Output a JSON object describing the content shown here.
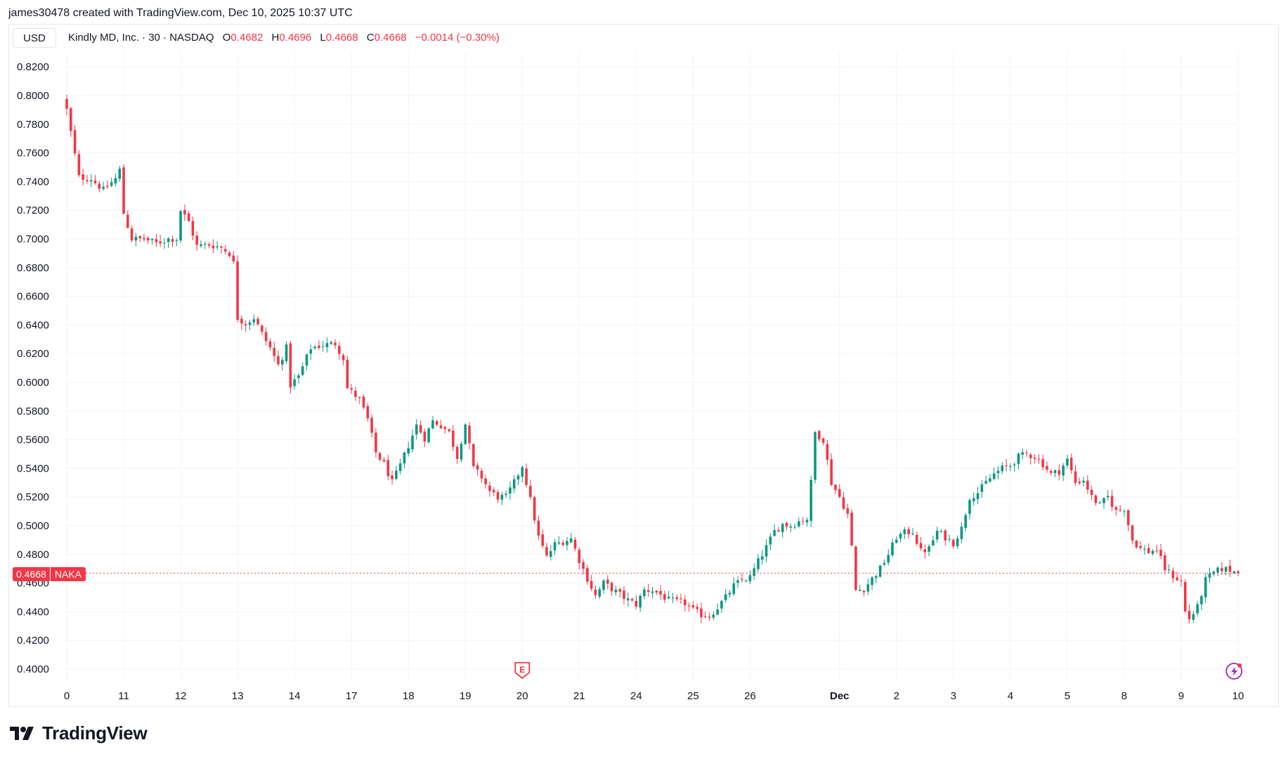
{
  "header": {
    "caption": "james30478 created with TradingView.com, Dec 10, 2025 10:37 UTC"
  },
  "toolbar": {
    "currency": "USD"
  },
  "legend": {
    "symbol": "Kindly MD, Inc. · 30 · NASDAQ",
    "open_label": "O",
    "open": "0.4682",
    "high_label": "H",
    "high": "0.4696",
    "low_label": "L",
    "low": "0.4668",
    "close_label": "C",
    "close": "0.4668",
    "change": "−0.0014 (−0.30%)"
  },
  "price_tag": {
    "price": "0.4668",
    "ticker": "NAKA"
  },
  "brand": {
    "name": "TradingView"
  },
  "colors": {
    "up": "#089981",
    "down": "#f23645",
    "grid": "#f0f3fa",
    "text": "#131722",
    "current_line": "#f23645"
  },
  "icons": {
    "earnings_marker": "earnings-icon",
    "event_marker": "lightning-icon"
  },
  "chart_data": {
    "type": "candlestick",
    "title": "Kindly MD, Inc. · 30 · NASDAQ",
    "ylim": [
      0.39,
      0.825
    ],
    "yticks": [
      "0.4000",
      "0.4200",
      "0.4400",
      "0.4600",
      "0.4800",
      "0.5000",
      "0.5200",
      "0.5400",
      "0.5600",
      "0.5800",
      "0.6000",
      "0.6200",
      "0.6400",
      "0.6600",
      "0.6800",
      "0.7000",
      "0.7200",
      "0.7400",
      "0.7600",
      "0.7800",
      "0.8000",
      "0.8200"
    ],
    "xticks": [
      {
        "label": "0",
        "i": 0
      },
      {
        "label": "11",
        "i": 14
      },
      {
        "label": "12",
        "i": 28
      },
      {
        "label": "13",
        "i": 42
      },
      {
        "label": "14",
        "i": 56
      },
      {
        "label": "17",
        "i": 70
      },
      {
        "label": "18",
        "i": 84
      },
      {
        "label": "19",
        "i": 98
      },
      {
        "label": "20",
        "i": 112
      },
      {
        "label": "21",
        "i": 126
      },
      {
        "label": "24",
        "i": 140
      },
      {
        "label": "25",
        "i": 154
      },
      {
        "label": "26",
        "i": 168
      },
      {
        "label": "Dec",
        "i": 190,
        "bold": true
      },
      {
        "label": "2",
        "i": 204
      },
      {
        "label": "3",
        "i": 218
      },
      {
        "label": "4",
        "i": 232
      },
      {
        "label": "5",
        "i": 246
      },
      {
        "label": "8",
        "i": 260
      },
      {
        "label": "9",
        "i": 274
      },
      {
        "label": "10",
        "i": 288
      }
    ],
    "current_price": 0.4668,
    "earnings_marker_index": 112,
    "event_marker_index": 287,
    "anchors": [
      [
        0,
        0.79
      ],
      [
        3,
        0.743
      ],
      [
        6,
        0.742
      ],
      [
        9,
        0.734
      ],
      [
        12,
        0.742
      ],
      [
        13,
        0.748
      ],
      [
        14,
        0.718
      ],
      [
        16,
        0.7
      ],
      [
        19,
        0.7
      ],
      [
        22,
        0.697
      ],
      [
        25,
        0.7
      ],
      [
        27,
        0.7
      ],
      [
        28,
        0.72
      ],
      [
        30,
        0.712
      ],
      [
        32,
        0.695
      ],
      [
        35,
        0.696
      ],
      [
        38,
        0.694
      ],
      [
        40,
        0.69
      ],
      [
        41,
        0.683
      ],
      [
        42,
        0.645
      ],
      [
        44,
        0.641
      ],
      [
        46,
        0.645
      ],
      [
        48,
        0.634
      ],
      [
        50,
        0.624
      ],
      [
        52,
        0.612
      ],
      [
        54,
        0.624
      ],
      [
        55,
        0.598
      ],
      [
        57,
        0.604
      ],
      [
        60,
        0.624
      ],
      [
        63,
        0.626
      ],
      [
        66,
        0.627
      ],
      [
        68,
        0.617
      ],
      [
        69,
        0.596
      ],
      [
        72,
        0.588
      ],
      [
        74,
        0.574
      ],
      [
        76,
        0.551
      ],
      [
        78,
        0.543
      ],
      [
        80,
        0.53
      ],
      [
        82,
        0.542
      ],
      [
        84,
        0.556
      ],
      [
        86,
        0.57
      ],
      [
        88,
        0.561
      ],
      [
        90,
        0.573
      ],
      [
        92,
        0.57
      ],
      [
        94,
        0.565
      ],
      [
        96,
        0.548
      ],
      [
        98,
        0.571
      ],
      [
        100,
        0.54
      ],
      [
        102,
        0.534
      ],
      [
        104,
        0.524
      ],
      [
        106,
        0.52
      ],
      [
        108,
        0.52
      ],
      [
        110,
        0.53
      ],
      [
        112,
        0.542
      ],
      [
        114,
        0.518
      ],
      [
        116,
        0.492
      ],
      [
        118,
        0.478
      ],
      [
        120,
        0.487
      ],
      [
        122,
        0.489
      ],
      [
        124,
        0.491
      ],
      [
        126,
        0.476
      ],
      [
        128,
        0.463
      ],
      [
        130,
        0.451
      ],
      [
        132,
        0.46
      ],
      [
        134,
        0.456
      ],
      [
        136,
        0.452
      ],
      [
        138,
        0.448
      ],
      [
        140,
        0.445
      ],
      [
        142,
        0.455
      ],
      [
        144,
        0.455
      ],
      [
        146,
        0.452
      ],
      [
        148,
        0.448
      ],
      [
        150,
        0.447
      ],
      [
        152,
        0.446
      ],
      [
        154,
        0.441
      ],
      [
        156,
        0.438
      ],
      [
        158,
        0.437
      ],
      [
        160,
        0.443
      ],
      [
        162,
        0.45
      ],
      [
        164,
        0.458
      ],
      [
        166,
        0.462
      ],
      [
        168,
        0.464
      ],
      [
        170,
        0.475
      ],
      [
        172,
        0.485
      ],
      [
        174,
        0.496
      ],
      [
        176,
        0.501
      ],
      [
        178,
        0.5
      ],
      [
        180,
        0.503
      ],
      [
        182,
        0.505
      ],
      [
        183,
        0.53
      ],
      [
        184,
        0.565
      ],
      [
        186,
        0.56
      ],
      [
        188,
        0.53
      ],
      [
        190,
        0.52
      ],
      [
        192,
        0.508
      ],
      [
        193,
        0.485
      ],
      [
        194,
        0.455
      ],
      [
        196,
        0.456
      ],
      [
        198,
        0.463
      ],
      [
        200,
        0.47
      ],
      [
        202,
        0.48
      ],
      [
        204,
        0.492
      ],
      [
        206,
        0.495
      ],
      [
        208,
        0.496
      ],
      [
        210,
        0.482
      ],
      [
        212,
        0.484
      ],
      [
        214,
        0.496
      ],
      [
        216,
        0.492
      ],
      [
        218,
        0.488
      ],
      [
        220,
        0.498
      ],
      [
        222,
        0.52
      ],
      [
        224,
        0.523
      ],
      [
        226,
        0.53
      ],
      [
        228,
        0.536
      ],
      [
        230,
        0.54
      ],
      [
        232,
        0.542
      ],
      [
        234,
        0.548
      ],
      [
        236,
        0.55
      ],
      [
        238,
        0.548
      ],
      [
        240,
        0.543
      ],
      [
        242,
        0.536
      ],
      [
        244,
        0.538
      ],
      [
        246,
        0.546
      ],
      [
        248,
        0.53
      ],
      [
        250,
        0.532
      ],
      [
        252,
        0.52
      ],
      [
        254,
        0.514
      ],
      [
        256,
        0.52
      ],
      [
        258,
        0.51
      ],
      [
        260,
        0.512
      ],
      [
        262,
        0.49
      ],
      [
        264,
        0.484
      ],
      [
        266,
        0.482
      ],
      [
        268,
        0.483
      ],
      [
        270,
        0.47
      ],
      [
        272,
        0.465
      ],
      [
        274,
        0.461
      ],
      [
        275,
        0.44
      ],
      [
        276,
        0.435
      ],
      [
        278,
        0.443
      ],
      [
        280,
        0.462
      ],
      [
        282,
        0.467
      ],
      [
        284,
        0.47
      ],
      [
        286,
        0.469
      ],
      [
        288,
        0.4668
      ]
    ],
    "candles_total": 289
  }
}
